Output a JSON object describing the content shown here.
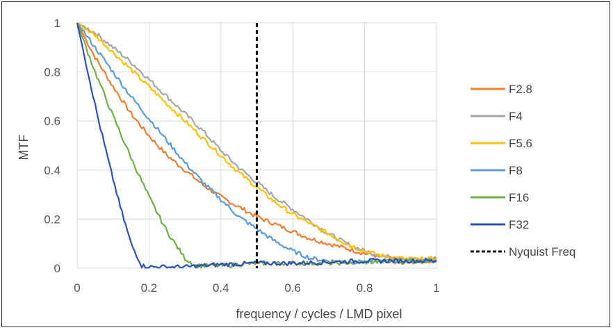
{
  "chart_data": {
    "type": "line",
    "title": "",
    "xlabel": "frequency / cycles / LMD pixel",
    "ylabel": "MTF",
    "xlim": [
      0,
      1
    ],
    "ylim": [
      0,
      1
    ],
    "x_ticks": [
      "0",
      "0.2",
      "0.4",
      "0.6",
      "0.8",
      "1"
    ],
    "y_ticks": [
      "0",
      "0.2",
      "0.4",
      "0.6",
      "0.8",
      "1"
    ],
    "grid": true,
    "legend_position": "right",
    "series": [
      {
        "name": "F2.8",
        "color": "#ED7D31",
        "points": [
          [
            0,
            1
          ],
          [
            0.05,
            0.86
          ],
          [
            0.1,
            0.74
          ],
          [
            0.15,
            0.63
          ],
          [
            0.2,
            0.54
          ],
          [
            0.25,
            0.46
          ],
          [
            0.3,
            0.4
          ],
          [
            0.35,
            0.34
          ],
          [
            0.4,
            0.29
          ],
          [
            0.45,
            0.25
          ],
          [
            0.5,
            0.21
          ],
          [
            0.55,
            0.18
          ],
          [
            0.6,
            0.15
          ],
          [
            0.65,
            0.12
          ],
          [
            0.7,
            0.1
          ],
          [
            0.75,
            0.08
          ],
          [
            0.8,
            0.06
          ],
          [
            0.85,
            0.045
          ],
          [
            0.9,
            0.035
          ],
          [
            0.95,
            0.03
          ],
          [
            1,
            0.03
          ]
        ]
      },
      {
        "name": "F4",
        "color": "#A5A5A5",
        "points": [
          [
            0,
            1
          ],
          [
            0.05,
            0.96
          ],
          [
            0.1,
            0.9
          ],
          [
            0.15,
            0.84
          ],
          [
            0.2,
            0.77
          ],
          [
            0.25,
            0.7
          ],
          [
            0.3,
            0.63
          ],
          [
            0.35,
            0.56
          ],
          [
            0.4,
            0.48
          ],
          [
            0.45,
            0.41
          ],
          [
            0.5,
            0.35
          ],
          [
            0.55,
            0.29
          ],
          [
            0.6,
            0.24
          ],
          [
            0.65,
            0.19
          ],
          [
            0.7,
            0.14
          ],
          [
            0.75,
            0.1
          ],
          [
            0.8,
            0.07
          ],
          [
            0.85,
            0.05
          ],
          [
            0.9,
            0.04
          ],
          [
            0.95,
            0.035
          ],
          [
            1,
            0.04
          ]
        ]
      },
      {
        "name": "F5.6",
        "color": "#FFC000",
        "points": [
          [
            0,
            1
          ],
          [
            0.05,
            0.95
          ],
          [
            0.1,
            0.88
          ],
          [
            0.15,
            0.81
          ],
          [
            0.2,
            0.74
          ],
          [
            0.25,
            0.67
          ],
          [
            0.3,
            0.6
          ],
          [
            0.35,
            0.53
          ],
          [
            0.4,
            0.46
          ],
          [
            0.45,
            0.39
          ],
          [
            0.5,
            0.33
          ],
          [
            0.55,
            0.27
          ],
          [
            0.6,
            0.22
          ],
          [
            0.65,
            0.18
          ],
          [
            0.7,
            0.14
          ],
          [
            0.75,
            0.1
          ],
          [
            0.8,
            0.07
          ],
          [
            0.85,
            0.05
          ],
          [
            0.9,
            0.04
          ],
          [
            0.95,
            0.035
          ],
          [
            1,
            0.04
          ]
        ]
      },
      {
        "name": "F8",
        "color": "#5B9BD5",
        "points": [
          [
            0,
            1
          ],
          [
            0.05,
            0.9
          ],
          [
            0.1,
            0.8
          ],
          [
            0.15,
            0.7
          ],
          [
            0.2,
            0.61
          ],
          [
            0.25,
            0.52
          ],
          [
            0.3,
            0.43
          ],
          [
            0.35,
            0.35
          ],
          [
            0.4,
            0.28
          ],
          [
            0.45,
            0.21
          ],
          [
            0.5,
            0.16
          ],
          [
            0.55,
            0.11
          ],
          [
            0.6,
            0.07
          ],
          [
            0.65,
            0.04
          ],
          [
            0.7,
            0.03
          ],
          [
            0.75,
            0.025
          ],
          [
            0.8,
            0.025
          ],
          [
            0.85,
            0.03
          ],
          [
            0.9,
            0.03
          ],
          [
            0.95,
            0.03
          ],
          [
            1,
            0.03
          ]
        ]
      },
      {
        "name": "F16",
        "color": "#70AD47",
        "points": [
          [
            0,
            1
          ],
          [
            0.05,
            0.8
          ],
          [
            0.1,
            0.62
          ],
          [
            0.15,
            0.45
          ],
          [
            0.2,
            0.29
          ],
          [
            0.25,
            0.15
          ],
          [
            0.3,
            0.04
          ],
          [
            0.33,
            0.01
          ],
          [
            0.4,
            0.01
          ],
          [
            0.5,
            0.02
          ],
          [
            0.6,
            0.02
          ],
          [
            0.7,
            0.02
          ],
          [
            0.8,
            0.025
          ],
          [
            0.9,
            0.025
          ],
          [
            1,
            0.03
          ]
        ]
      },
      {
        "name": "F32",
        "color": "#2E4FB5",
        "points": [
          [
            0,
            1
          ],
          [
            0.03,
            0.8
          ],
          [
            0.06,
            0.6
          ],
          [
            0.09,
            0.42
          ],
          [
            0.12,
            0.25
          ],
          [
            0.15,
            0.1
          ],
          [
            0.18,
            0.01
          ],
          [
            0.2,
            0.005
          ],
          [
            0.3,
            0.005
          ],
          [
            0.4,
            0.015
          ],
          [
            0.5,
            0.02
          ],
          [
            0.6,
            0.02
          ],
          [
            0.7,
            0.025
          ],
          [
            0.8,
            0.03
          ],
          [
            0.9,
            0.03
          ],
          [
            1,
            0.03
          ]
        ]
      }
    ],
    "reference_lines": [
      {
        "name": "Nyquist Freq",
        "x": 0.5,
        "style": "dashed",
        "color": "#111111"
      }
    ]
  }
}
